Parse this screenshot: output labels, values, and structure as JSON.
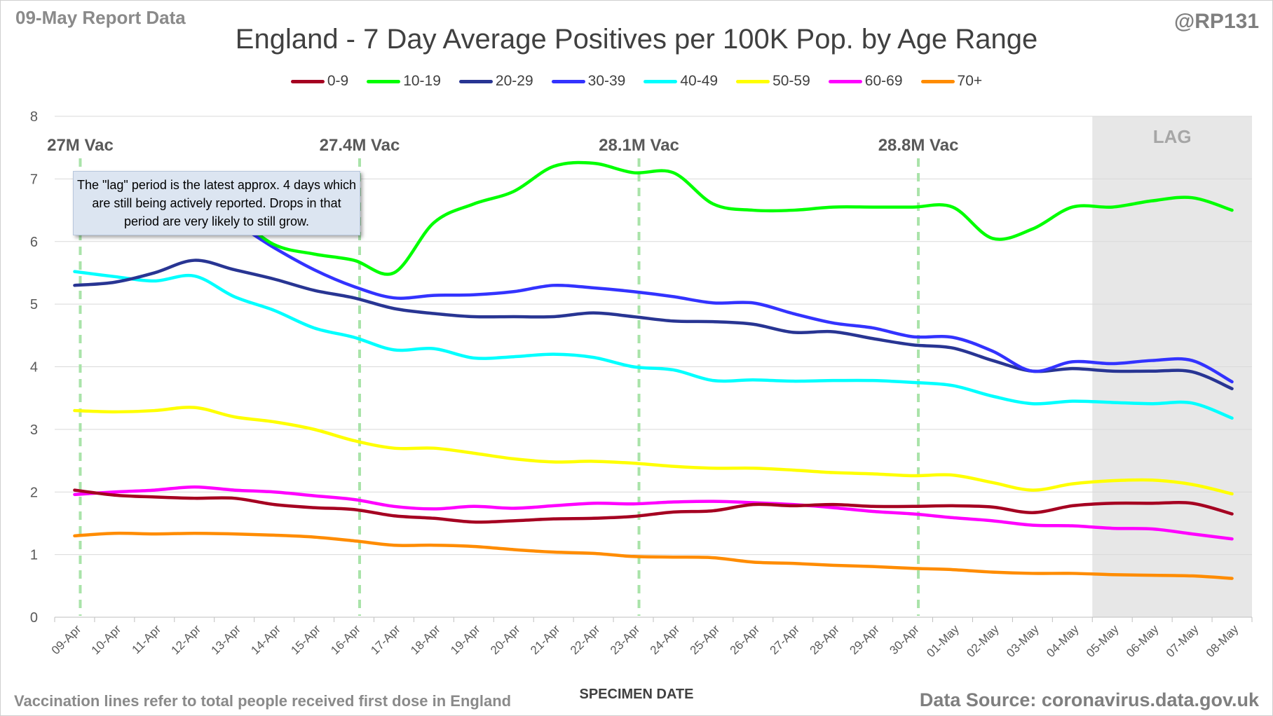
{
  "header": {
    "report_label": "09-May Report Data",
    "handle": "@RP131"
  },
  "footer": {
    "vaccination_note": "Vaccination lines refer to total people received first dose in England",
    "data_source": "Data Source: coronavirus.data.gov.uk"
  },
  "annotation": {
    "lag_note": "The \"lag\" period is the latest approx. 4 days which are still being actively reported. Drops in that period are very likely to still grow."
  },
  "chart_data": {
    "type": "line",
    "title": "England - 7 Day Average Positives per 100K Pop. by Age Range",
    "xlabel": "SPECIMEN DATE",
    "ylabel": "",
    "ylim": [
      0,
      8
    ],
    "yticks": [
      0,
      1,
      2,
      3,
      4,
      5,
      6,
      7,
      8
    ],
    "grid": true,
    "legend_position": "top",
    "categories": [
      "09-Apr",
      "10-Apr",
      "11-Apr",
      "12-Apr",
      "13-Apr",
      "14-Apr",
      "15-Apr",
      "16-Apr",
      "17-Apr",
      "18-Apr",
      "19-Apr",
      "20-Apr",
      "21-Apr",
      "22-Apr",
      "23-Apr",
      "24-Apr",
      "25-Apr",
      "26-Apr",
      "27-Apr",
      "28-Apr",
      "29-Apr",
      "30-Apr",
      "01-May",
      "02-May",
      "03-May",
      "04-May",
      "05-May",
      "06-May",
      "07-May",
      "08-May"
    ],
    "lag_region": {
      "label": "LAG",
      "start": "05-May",
      "end": "08-May",
      "color": "#e7e7e7"
    },
    "vaccination_markers": [
      {
        "date": "09-Apr",
        "label": "27M Vac"
      },
      {
        "date": "16-Apr",
        "label": "27.4M Vac"
      },
      {
        "date": "23-Apr",
        "label": "28.1M Vac"
      },
      {
        "date": "30-Apr",
        "label": "28.8M Vac"
      }
    ],
    "series": [
      {
        "name": "0-9",
        "color": "#a50021",
        "values": [
          2.03,
          1.95,
          1.92,
          1.9,
          1.9,
          1.8,
          1.75,
          1.72,
          1.62,
          1.58,
          1.52,
          1.54,
          1.57,
          1.58,
          1.61,
          1.68,
          1.7,
          1.8,
          1.78,
          1.8,
          1.77,
          1.77,
          1.78,
          1.76,
          1.67,
          1.78,
          1.82,
          1.82,
          1.82,
          1.65
        ]
      },
      {
        "name": "10-19",
        "color": "#00ff00",
        "values": [
          6.7,
          6.9,
          6.8,
          6.6,
          6.4,
          5.95,
          5.8,
          5.7,
          5.5,
          6.3,
          6.6,
          6.8,
          7.2,
          7.25,
          7.1,
          7.1,
          6.6,
          6.5,
          6.5,
          6.55,
          6.55,
          6.55,
          6.55,
          6.05,
          6.2,
          6.55,
          6.55,
          6.65,
          6.7,
          6.5
        ]
      },
      {
        "name": "20-29",
        "color": "#283593",
        "values": [
          5.3,
          5.35,
          5.5,
          5.7,
          5.55,
          5.4,
          5.22,
          5.1,
          4.93,
          4.85,
          4.8,
          4.8,
          4.8,
          4.86,
          4.8,
          4.73,
          4.72,
          4.68,
          4.55,
          4.56,
          4.45,
          4.35,
          4.3,
          4.1,
          3.93,
          3.97,
          3.93,
          3.93,
          3.92,
          3.65
        ]
      },
      {
        "name": "30-39",
        "color": "#3333ff",
        "values": [
          6.7,
          6.8,
          6.75,
          6.6,
          6.3,
          5.9,
          5.55,
          5.28,
          5.1,
          5.14,
          5.15,
          5.2,
          5.3,
          5.26,
          5.2,
          5.12,
          5.02,
          5.02,
          4.85,
          4.7,
          4.62,
          4.48,
          4.47,
          4.25,
          3.93,
          4.08,
          4.05,
          4.1,
          4.1,
          3.76
        ]
      },
      {
        "name": "40-49",
        "color": "#00ffff",
        "values": [
          5.52,
          5.44,
          5.37,
          5.45,
          5.12,
          4.9,
          4.62,
          4.47,
          4.27,
          4.29,
          4.14,
          4.16,
          4.2,
          4.15,
          4.0,
          3.95,
          3.78,
          3.79,
          3.77,
          3.78,
          3.78,
          3.75,
          3.7,
          3.53,
          3.41,
          3.45,
          3.43,
          3.41,
          3.42,
          3.18
        ]
      },
      {
        "name": "50-59",
        "color": "#ffff00",
        "values": [
          3.3,
          3.28,
          3.3,
          3.35,
          3.2,
          3.12,
          3.0,
          2.82,
          2.7,
          2.7,
          2.62,
          2.53,
          2.48,
          2.49,
          2.46,
          2.41,
          2.38,
          2.38,
          2.35,
          2.31,
          2.29,
          2.26,
          2.27,
          2.15,
          2.03,
          2.13,
          2.18,
          2.19,
          2.12,
          1.97
        ]
      },
      {
        "name": "60-69",
        "color": "#ff00ff",
        "values": [
          1.96,
          2.0,
          2.03,
          2.08,
          2.03,
          2.0,
          1.94,
          1.88,
          1.77,
          1.73,
          1.77,
          1.74,
          1.78,
          1.82,
          1.81,
          1.84,
          1.85,
          1.83,
          1.8,
          1.75,
          1.69,
          1.65,
          1.59,
          1.54,
          1.47,
          1.46,
          1.42,
          1.41,
          1.33,
          1.25
        ]
      },
      {
        "name": "70+",
        "color": "#ff8c00",
        "values": [
          1.3,
          1.34,
          1.33,
          1.34,
          1.33,
          1.31,
          1.28,
          1.22,
          1.15,
          1.15,
          1.13,
          1.08,
          1.04,
          1.02,
          0.97,
          0.96,
          0.95,
          0.88,
          0.86,
          0.83,
          0.81,
          0.78,
          0.76,
          0.72,
          0.7,
          0.7,
          0.68,
          0.67,
          0.66,
          0.62
        ]
      }
    ]
  }
}
